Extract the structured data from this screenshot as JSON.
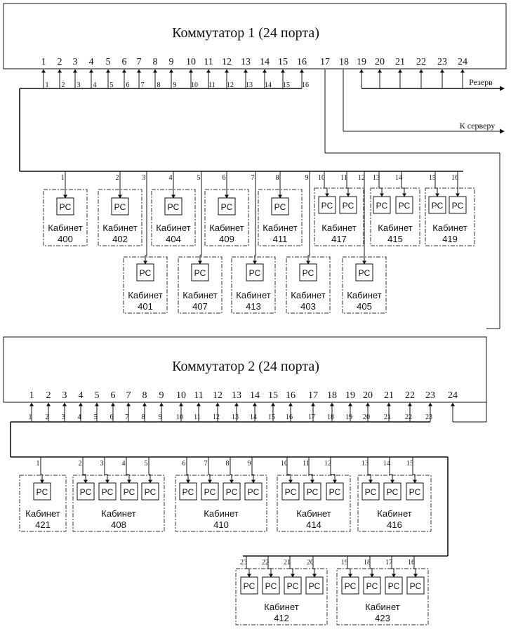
{
  "switch1": {
    "title": "Коммутатор 1 (24 порта)",
    "ports": [
      "1",
      "2",
      "3",
      "4",
      "5",
      "6",
      "7",
      "8",
      "9",
      "10",
      "11",
      "12",
      "13",
      "14",
      "15",
      "16",
      "17",
      "18",
      "19",
      "20",
      "21",
      "22",
      "23",
      "24"
    ],
    "cable_labels": [
      "1",
      "2",
      "3",
      "4",
      "5",
      "6",
      "7",
      "8",
      "9",
      "10",
      "11",
      "12",
      "13",
      "14",
      "15",
      "16"
    ]
  },
  "switch1_links": {
    "reserve": "Резерв",
    "to_server": "К серверу"
  },
  "switch2": {
    "title": "Коммутатор 2 (24 порта)",
    "ports": [
      "1",
      "2",
      "3",
      "4",
      "5",
      "6",
      "7",
      "8",
      "9",
      "10",
      "11",
      "12",
      "13",
      "14",
      "15",
      "16",
      "17",
      "18",
      "19",
      "20",
      "21",
      "22",
      "23",
      "24"
    ],
    "cable_labels": [
      "1",
      "2",
      "3",
      "4",
      "5",
      "6",
      "7",
      "8",
      "9",
      "10",
      "11",
      "12",
      "13",
      "14",
      "15",
      "16",
      "17",
      "18",
      "19",
      "20",
      "21",
      "22",
      "23"
    ]
  },
  "pc_label": "PC",
  "room_word": "Кабинет",
  "rooms_switch1": [
    {
      "number": "400",
      "drops": [
        "1"
      ]
    },
    {
      "number": "402",
      "drops": [
        "2"
      ]
    },
    {
      "number": "404",
      "drops": [
        "4"
      ]
    },
    {
      "number": "409",
      "drops": [
        "6"
      ]
    },
    {
      "number": "411",
      "drops": [
        "8"
      ]
    },
    {
      "number": "417",
      "drops": [
        "10",
        "11"
      ]
    },
    {
      "number": "415",
      "drops": [
        "13",
        "14"
      ]
    },
    {
      "number": "419",
      "drops": [
        "15",
        "16"
      ]
    },
    {
      "number": "401",
      "drops": [
        "3"
      ]
    },
    {
      "number": "407",
      "drops": [
        "5"
      ]
    },
    {
      "number": "413",
      "drops": [
        "7"
      ]
    },
    {
      "number": "403",
      "drops": [
        "9"
      ]
    },
    {
      "number": "405",
      "drops": [
        "12"
      ]
    }
  ],
  "rooms_switch2": [
    {
      "number": "421",
      "drops": [
        "1"
      ]
    },
    {
      "number": "408",
      "drops": [
        "2",
        "3",
        "4",
        "5"
      ]
    },
    {
      "number": "410",
      "drops": [
        "6",
        "7",
        "8",
        "9"
      ]
    },
    {
      "number": "414",
      "drops": [
        "10",
        "11",
        "12"
      ]
    },
    {
      "number": "416",
      "drops": [
        "13",
        "14",
        "15"
      ]
    },
    {
      "number": "412",
      "drops": [
        "23",
        "22",
        "21",
        "20"
      ]
    },
    {
      "number": "423",
      "drops": [
        "19",
        "18",
        "17",
        "16"
      ]
    }
  ]
}
